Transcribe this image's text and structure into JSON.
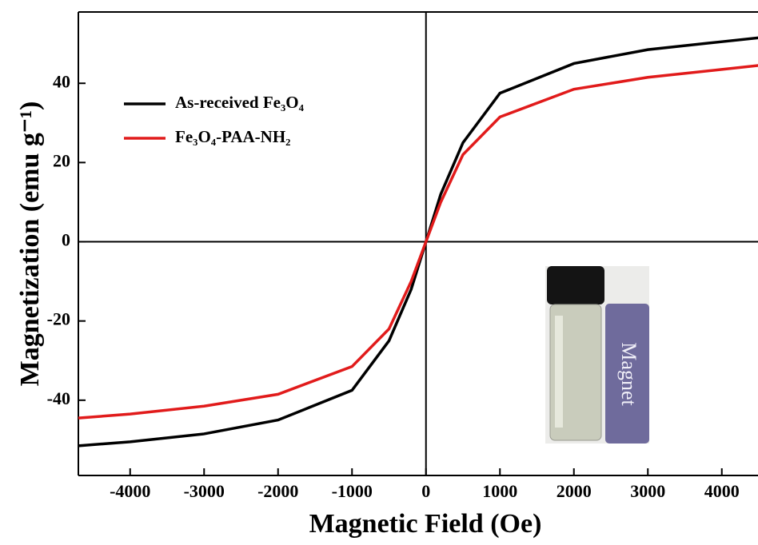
{
  "chart_data": {
    "type": "line",
    "x_label": "Magnetic Field (Oe)",
    "y_label": "Magnetization (emu g⁻¹)",
    "x": [
      -4700,
      -4000,
      -3000,
      -2000,
      -1000,
      -500,
      -200,
      0,
      200,
      500,
      1000,
      2000,
      3000,
      4000,
      4500
    ],
    "series": [
      {
        "name": "As-received Fe₃O₄",
        "color": "#000000",
        "values": [
          -51.5,
          -50.5,
          -48.5,
          -45,
          -37.5,
          -25,
          -12,
          0,
          12,
          25,
          37.5,
          45,
          48.5,
          50.5,
          51.5
        ]
      },
      {
        "name": "Fe₃O₄-PAA-NH₂",
        "color": "#e11b1b",
        "values": [
          -44.5,
          -43.5,
          -41.5,
          -38.5,
          -31.5,
          -22,
          -10,
          0,
          10,
          22,
          31.5,
          38.5,
          41.5,
          43.5,
          44.5
        ]
      }
    ],
    "xlim": [
      -4700,
      4500
    ],
    "ylim": [
      -59,
      58
    ],
    "xticks": [
      -4000,
      -3000,
      -2000,
      -1000,
      0,
      1000,
      2000,
      3000,
      4000
    ],
    "yticks": [
      -40,
      -20,
      0,
      20,
      40
    ],
    "annotations": [
      "Magnet"
    ]
  }
}
